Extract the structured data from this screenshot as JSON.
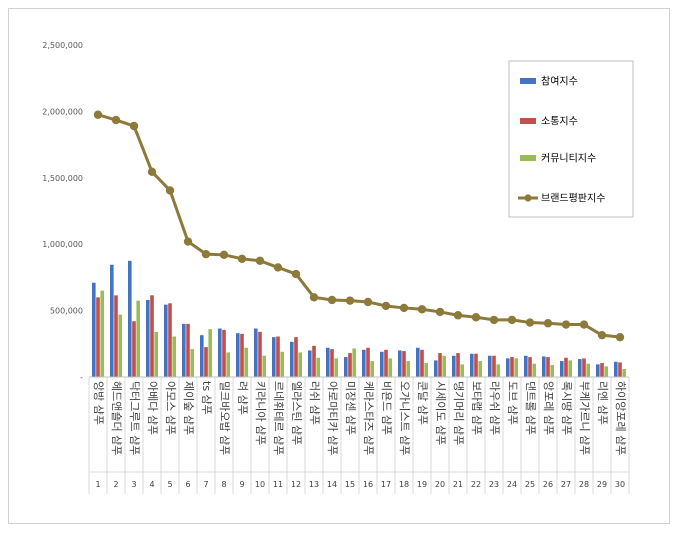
{
  "chart_data": {
    "type": "bar",
    "title": "",
    "xlabel": "",
    "ylabel": "",
    "ylim": [
      0,
      2500000
    ],
    "yticks": [
      "-",
      "500,000",
      "1,000,000",
      "1,500,000",
      "2,000,000",
      "2,500,000"
    ],
    "grid": false,
    "legend_position": "top-right",
    "categories": [
      "앙방 샴푸",
      "헤드앤숄더 샴푸",
      "닥터그루트 샴푸",
      "아베다 샴푸",
      "아모스 샴푸",
      "제이숲 샴푸",
      "ts 샴푸",
      "밀크바오밥 샴푸",
      "려 샴푸",
      "키라니아 샴푸",
      "르네휘테르 샴푸",
      "엘라스틴 샴푸",
      "러쉬 샴푸",
      "아로마티카 샴푸",
      "미장센 샴푸",
      "케라스타즈 샴푸",
      "비욘드 샴푸",
      "오가니스트 샴푸",
      "쿤달 샴푸",
      "시세이도 샴푸",
      "댕기머리 샴푸",
      "보타랩 샴푸",
      "라우쉬 샴푸",
      "도브 샴푸",
      "댄트롤 샴푸",
      "앙포레 샴푸",
      "록시땅 샴푸",
      "부케가르니 샴푸",
      "리엔 샴푸",
      "하이앙포레 샴푸"
    ],
    "index_labels": [
      "1",
      "2",
      "3",
      "4",
      "5",
      "6",
      "7",
      "8",
      "9",
      "10",
      "11",
      "12",
      "13",
      "14",
      "15",
      "16",
      "17",
      "18",
      "19",
      "20",
      "21",
      "22",
      "23",
      "24",
      "25",
      "26",
      "27",
      "28",
      "29",
      "30"
    ],
    "series": [
      {
        "name": "참여지수",
        "color": "#4472c4",
        "kind": "bar",
        "values": [
          710000,
          845000,
          875000,
          580000,
          545000,
          400000,
          315000,
          365000,
          330000,
          365000,
          300000,
          265000,
          200000,
          220000,
          150000,
          205000,
          190000,
          200000,
          220000,
          125000,
          160000,
          175000,
          160000,
          140000,
          160000,
          155000,
          120000,
          135000,
          95000,
          115000
        ]
      },
      {
        "name": "소통지수",
        "color": "#c0504d",
        "kind": "bar",
        "values": [
          600000,
          615000,
          420000,
          615000,
          555000,
          400000,
          225000,
          355000,
          325000,
          340000,
          305000,
          300000,
          235000,
          210000,
          180000,
          220000,
          205000,
          195000,
          205000,
          180000,
          180000,
          175000,
          160000,
          150000,
          150000,
          150000,
          145000,
          140000,
          105000,
          110000
        ]
      },
      {
        "name": "커뮤니티지수",
        "color": "#9bbb59",
        "kind": "bar",
        "values": [
          650000,
          470000,
          575000,
          340000,
          305000,
          210000,
          360000,
          185000,
          220000,
          160000,
          190000,
          185000,
          145000,
          140000,
          215000,
          120000,
          140000,
          120000,
          105000,
          160000,
          95000,
          120000,
          95000,
          140000,
          100000,
          90000,
          125000,
          100000,
          80000,
          60000
        ]
      },
      {
        "name": "브랜드평판지수",
        "color": "#8c7a3a",
        "kind": "line",
        "values": [
          1975000,
          1935000,
          1890000,
          1545000,
          1405000,
          1020000,
          925000,
          920000,
          890000,
          875000,
          825000,
          775000,
          600000,
          580000,
          575000,
          565000,
          535000,
          520000,
          510000,
          490000,
          465000,
          450000,
          430000,
          430000,
          410000,
          405000,
          395000,
          395000,
          315000,
          300000
        ]
      }
    ]
  }
}
